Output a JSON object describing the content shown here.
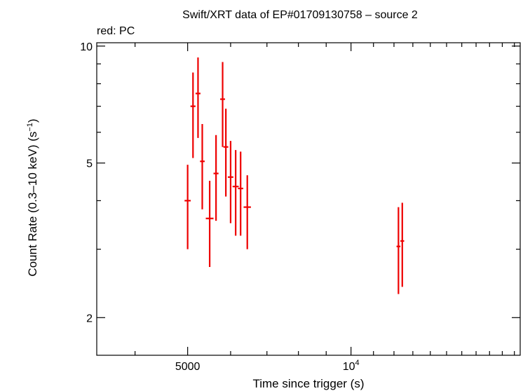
{
  "chart_data": {
    "type": "scatter",
    "title": "Swift/XRT data of EP#01709130758 – source 2",
    "subtitle": "red: PC",
    "xlabel": "Time since trigger (s)",
    "ylabel_main": "Count Rate (0.3–10 keV) (s",
    "ylabel_sup": "−1",
    "ylabel_close": ")",
    "x_scale": "log",
    "y_scale": "log",
    "xlim": [
      3400,
      20500
    ],
    "ylim": [
      1.6,
      10.2
    ],
    "x_tick_labels": [
      {
        "value": 5000,
        "label": "5000",
        "sup": ""
      },
      {
        "value": 10000,
        "label": "10",
        "sup": "4"
      }
    ],
    "y_tick_labels": [
      {
        "value": 10,
        "label": "10"
      },
      {
        "value": 5,
        "label": "5"
      },
      {
        "value": 2,
        "label": "2"
      }
    ],
    "series": [
      {
        "color": "#ee0000",
        "points": [
          {
            "x": 5000,
            "x_lo": 4935,
            "x_hi": 5065,
            "y": 4.0,
            "y_lo": 3.0,
            "y_hi": 4.95
          },
          {
            "x": 5115,
            "x_lo": 5060,
            "x_hi": 5170,
            "y": 7.0,
            "y_lo": 5.15,
            "y_hi": 8.55
          },
          {
            "x": 5225,
            "x_lo": 5170,
            "x_hi": 5280,
            "y": 7.55,
            "y_lo": 5.8,
            "y_hi": 9.35
          },
          {
            "x": 5320,
            "x_lo": 5270,
            "x_hi": 5375,
            "y": 5.05,
            "y_lo": 3.8,
            "y_hi": 6.3
          },
          {
            "x": 5490,
            "x_lo": 5400,
            "x_hi": 5580,
            "y": 3.6,
            "y_lo": 2.7,
            "y_hi": 4.5
          },
          {
            "x": 5640,
            "x_lo": 5580,
            "x_hi": 5700,
            "y": 4.7,
            "y_lo": 3.55,
            "y_hi": 5.9
          },
          {
            "x": 5800,
            "x_lo": 5740,
            "x_hi": 5860,
            "y": 7.3,
            "y_lo": 5.5,
            "y_hi": 9.1
          },
          {
            "x": 5880,
            "x_lo": 5820,
            "x_hi": 5940,
            "y": 5.5,
            "y_lo": 4.1,
            "y_hi": 6.9
          },
          {
            "x": 6000,
            "x_lo": 5930,
            "x_hi": 6070,
            "y": 4.6,
            "y_lo": 3.5,
            "y_hi": 5.7
          },
          {
            "x": 6130,
            "x_lo": 6050,
            "x_hi": 6210,
            "y": 4.35,
            "y_lo": 3.25,
            "y_hi": 5.4
          },
          {
            "x": 6260,
            "x_lo": 6190,
            "x_hi": 6330,
            "y": 4.3,
            "y_lo": 3.25,
            "y_hi": 5.35
          },
          {
            "x": 6440,
            "x_lo": 6340,
            "x_hi": 6540,
            "y": 3.85,
            "y_lo": 3.0,
            "y_hi": 4.65
          },
          {
            "x": 12230,
            "x_lo": 12130,
            "x_hi": 12330,
            "y": 3.05,
            "y_lo": 2.3,
            "y_hi": 3.85
          },
          {
            "x": 12430,
            "x_lo": 12330,
            "x_hi": 12530,
            "y": 3.15,
            "y_lo": 2.4,
            "y_hi": 3.95
          }
        ]
      }
    ]
  }
}
